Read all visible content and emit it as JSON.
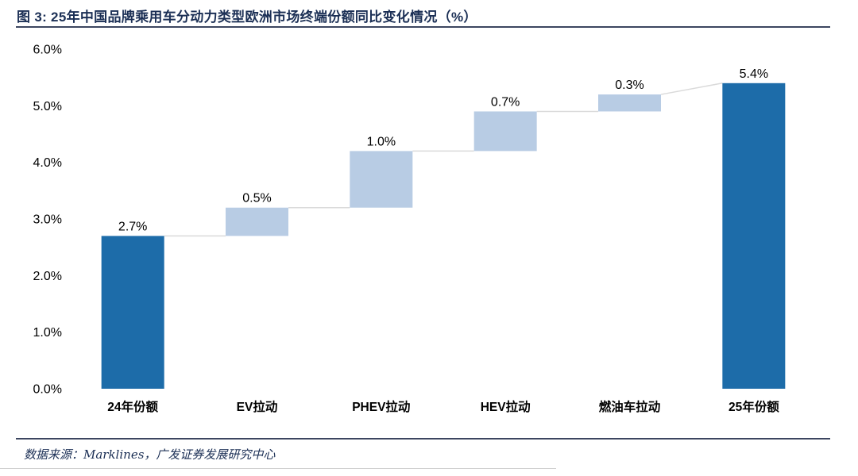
{
  "header": {
    "title": "图 3: 25年中国品牌乘用车分动力类型欧洲市场终端份额同比变化情况（%）"
  },
  "footer": {
    "source": "数据来源：Marklines，广发证券发展研究中心"
  },
  "colors": {
    "total_bar": "#1D6CA9",
    "delta_bar": "#B8CCE4",
    "connector": "#DADADA",
    "heading_text": "#1B2F55",
    "rule": "#3C4660",
    "label_text": "#000000"
  },
  "chart_data": {
    "type": "bar",
    "subtype": "waterfall",
    "title": "25年中国品牌乘用车分动力类型欧洲市场终端份额同比变化情况（%）",
    "categories": [
      "24年份额",
      "EV拉动",
      "PHEV拉动",
      "HEV拉动",
      "燃油车拉动",
      "25年份额"
    ],
    "items": [
      {
        "category": "24年份额",
        "value": 2.7,
        "kind": "total",
        "label": "2.7%"
      },
      {
        "category": "EV拉动",
        "value": 0.5,
        "kind": "delta",
        "label": "0.5%"
      },
      {
        "category": "PHEV拉动",
        "value": 1.0,
        "kind": "delta",
        "label": "1.0%"
      },
      {
        "category": "HEV拉动",
        "value": 0.7,
        "kind": "delta",
        "label": "0.7%"
      },
      {
        "category": "燃油车拉动",
        "value": 0.3,
        "kind": "delta",
        "label": "0.3%"
      },
      {
        "category": "25年份额",
        "value": 5.4,
        "kind": "total",
        "label": "5.4%"
      }
    ],
    "y_ticks": [
      {
        "label": "6.0%",
        "value": 6
      },
      {
        "label": "5.0%",
        "value": 5
      },
      {
        "label": "4.0%",
        "value": 4
      },
      {
        "label": "3.0%",
        "value": 3
      },
      {
        "label": "2.0%",
        "value": 2
      },
      {
        "label": "1.0%",
        "value": 1
      },
      {
        "label": "0.0%",
        "value": 0
      }
    ],
    "ylim": [
      0,
      6
    ],
    "grid": false,
    "legend": null,
    "unit": "%"
  }
}
